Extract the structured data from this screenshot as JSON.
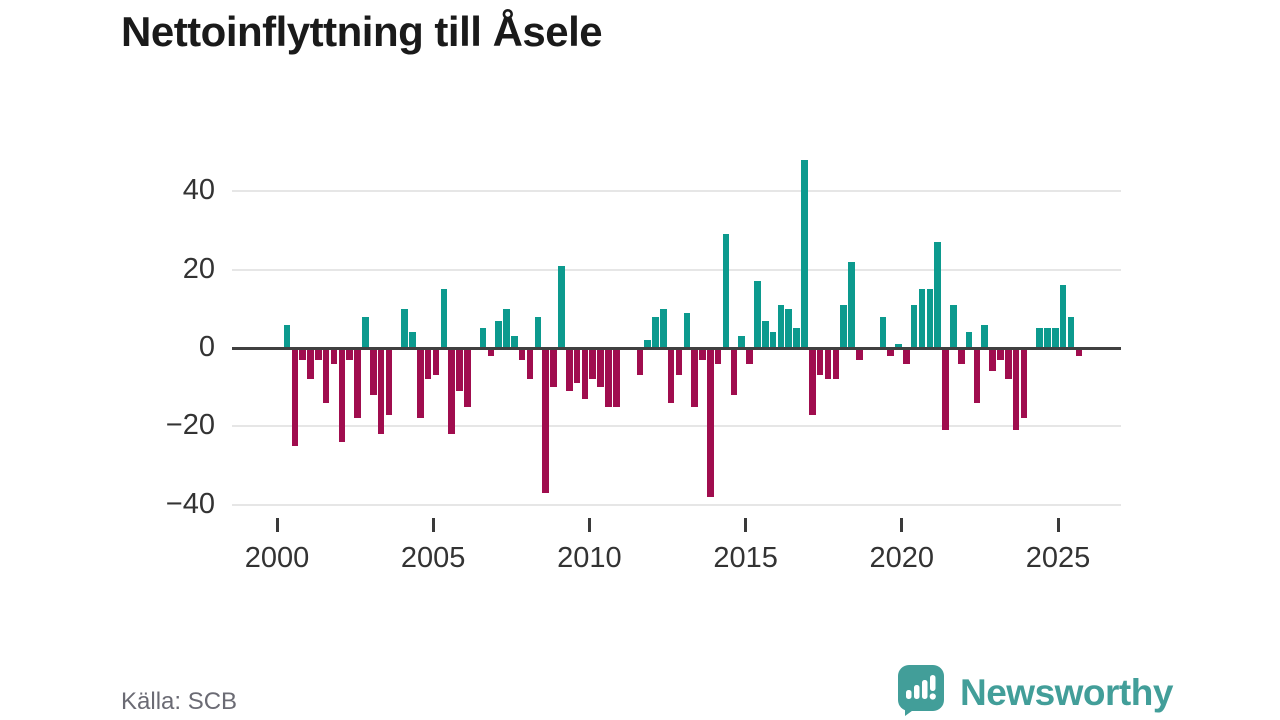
{
  "title": "Nettoinflyttning till Åsele",
  "footer": {
    "source": "Källa: SCB",
    "brand": "Newsworthy"
  },
  "axes": {
    "y_tick_labels": [
      "40",
      "20",
      "0",
      "−20",
      "−40"
    ],
    "y_tick_values": [
      40,
      20,
      0,
      -20,
      -40
    ],
    "x_tick_labels": [
      "2000",
      "2005",
      "2010",
      "2015",
      "2020",
      "2025"
    ]
  },
  "colors": {
    "positive": "#0c9a8e",
    "negative": "#a00d4e",
    "grid": "#e6e6e6",
    "zero_line": "#404040",
    "axis_text": "#333333",
    "title_text": "#1a1a1a",
    "source_text": "#6b6b74",
    "brand_teal": "#429e99"
  },
  "chart_data": {
    "type": "bar",
    "title": "Nettoinflyttning till Åsele",
    "xlabel": "",
    "ylabel": "",
    "frequency": "quarterly",
    "legend": "none",
    "grid": "horizontal",
    "ylim": [
      -40,
      48
    ],
    "x_axis_range": [
      "2000",
      "2025"
    ],
    "quarters": [
      "2000-Q2",
      "2000-Q3",
      "2000-Q4",
      "2001-Q1",
      "2001-Q2",
      "2001-Q3",
      "2001-Q4",
      "2002-Q1",
      "2002-Q2",
      "2002-Q3",
      "2002-Q4",
      "2003-Q1",
      "2003-Q2",
      "2003-Q3",
      "2003-Q4",
      "2004-Q1",
      "2004-Q2",
      "2004-Q3",
      "2004-Q4",
      "2005-Q1",
      "2005-Q2",
      "2005-Q3",
      "2005-Q4",
      "2006-Q1",
      "2006-Q2",
      "2006-Q3",
      "2006-Q4",
      "2007-Q1",
      "2007-Q2",
      "2007-Q3",
      "2007-Q4",
      "2008-Q1",
      "2008-Q2",
      "2008-Q3",
      "2008-Q4",
      "2009-Q1",
      "2009-Q2",
      "2009-Q3",
      "2009-Q4",
      "2010-Q1",
      "2010-Q2",
      "2010-Q3",
      "2010-Q4",
      "2011-Q1",
      "2011-Q2",
      "2011-Q3",
      "2011-Q4",
      "2012-Q1",
      "2012-Q2",
      "2012-Q3",
      "2012-Q4",
      "2013-Q1",
      "2013-Q2",
      "2013-Q3",
      "2013-Q4",
      "2014-Q1",
      "2014-Q2",
      "2014-Q3",
      "2014-Q4",
      "2015-Q1",
      "2015-Q2",
      "2015-Q3",
      "2015-Q4",
      "2016-Q1",
      "2016-Q2",
      "2016-Q3",
      "2016-Q4",
      "2017-Q1",
      "2017-Q2",
      "2017-Q3",
      "2017-Q4",
      "2018-Q1",
      "2018-Q2",
      "2018-Q3",
      "2018-Q4",
      "2019-Q1",
      "2019-Q2",
      "2019-Q3",
      "2019-Q4",
      "2020-Q1",
      "2020-Q2",
      "2020-Q3",
      "2020-Q4",
      "2021-Q1",
      "2021-Q2",
      "2021-Q3",
      "2021-Q4",
      "2022-Q1",
      "2022-Q2",
      "2022-Q3",
      "2022-Q4",
      "2023-Q1",
      "2023-Q2",
      "2023-Q3",
      "2023-Q4",
      "2024-Q1",
      "2024-Q2",
      "2024-Q3",
      "2024-Q4",
      "2025-Q1",
      "2025-Q2",
      "2025-Q3"
    ],
    "values": [
      6,
      -25,
      -3,
      -8,
      -3,
      -14,
      -4,
      -24,
      -3,
      -18,
      8,
      -12,
      -22,
      -17,
      0,
      10,
      4,
      -18,
      -8,
      -7,
      15,
      -22,
      -11,
      -15,
      0,
      5,
      -2,
      7,
      10,
      3,
      -3,
      -8,
      8,
      -37,
      -10,
      21,
      -11,
      -9,
      -13,
      -8,
      -10,
      -15,
      -15,
      0,
      0,
      -7,
      2,
      8,
      10,
      -14,
      -7,
      9,
      -15,
      -3,
      -38,
      -4,
      29,
      -12,
      3,
      -4,
      17,
      7,
      4,
      11,
      10,
      5,
      48,
      -17,
      -7,
      -8,
      -8,
      11,
      22,
      -3,
      0,
      0,
      8,
      -2,
      1,
      -4,
      11,
      15,
      15,
      27,
      -21,
      11,
      -4,
      4,
      -14,
      6,
      -6,
      -3,
      -8,
      -21,
      -18,
      0,
      5,
      5,
      5,
      16,
      8,
      -2
    ],
    "positive_color": "#0c9a8e",
    "negative_color": "#a00d4e"
  }
}
